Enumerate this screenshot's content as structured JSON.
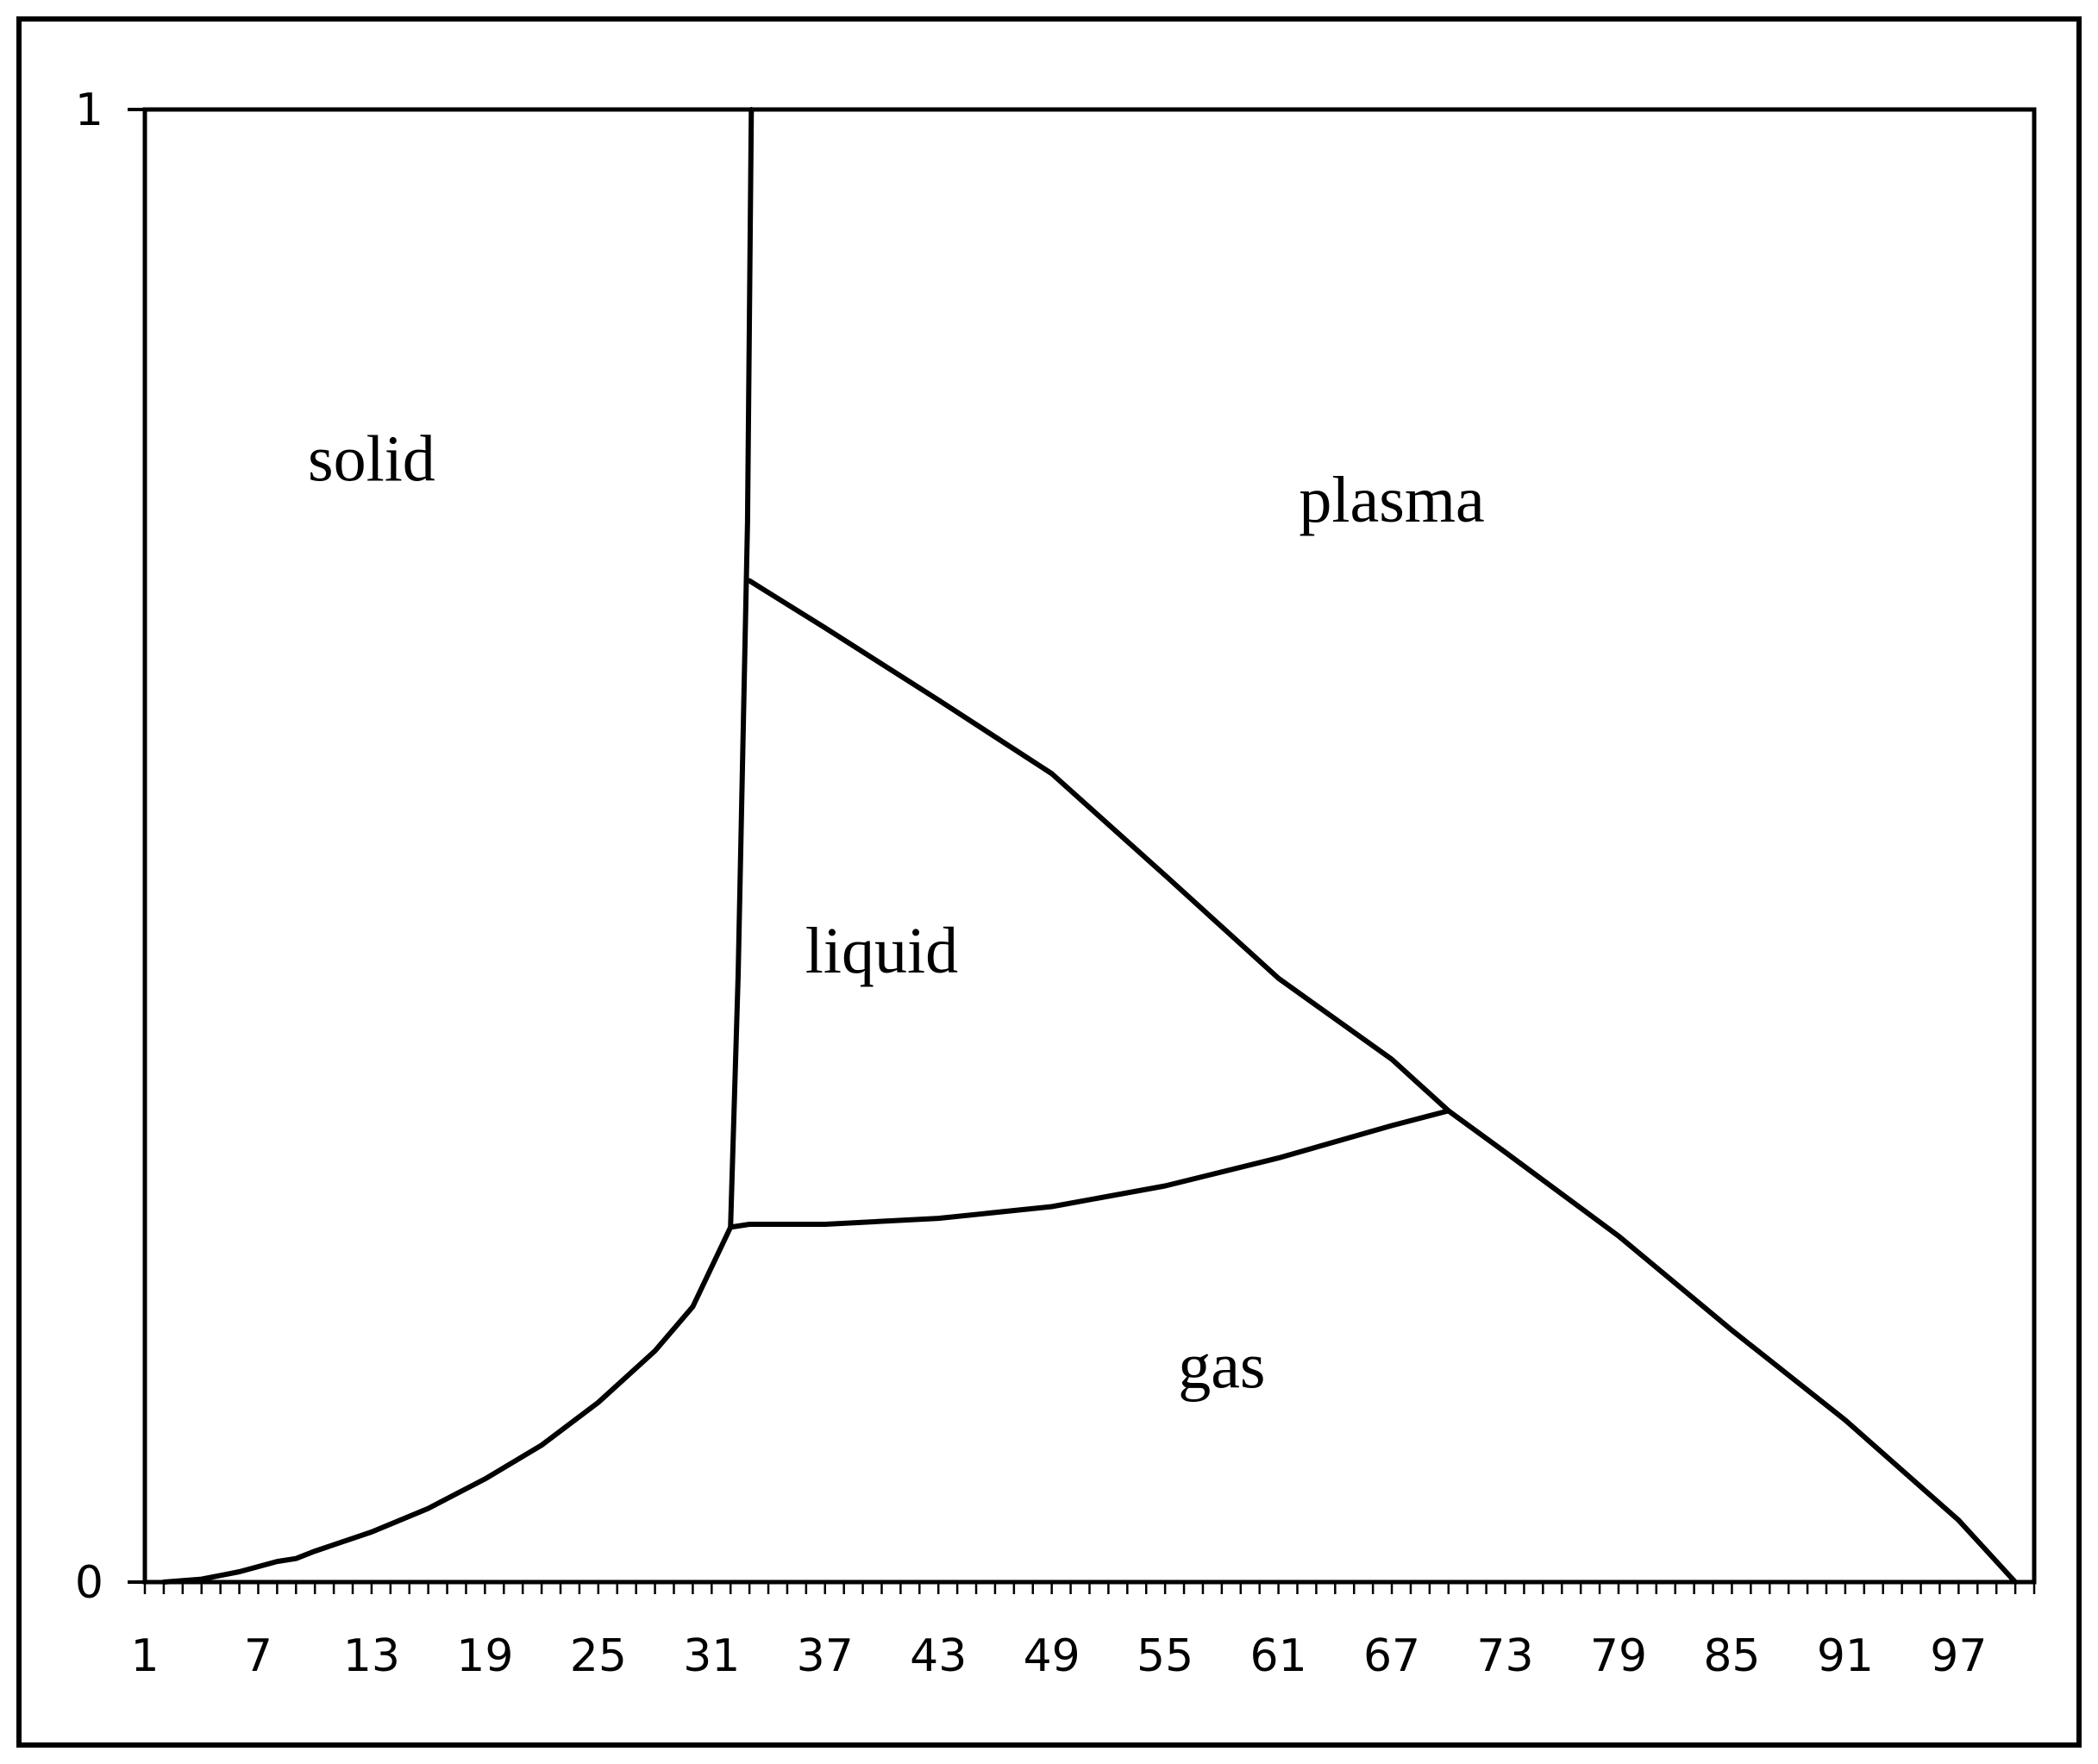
{
  "chart_data": {
    "type": "line",
    "title": "",
    "xlabel": "",
    "ylabel": "",
    "xlim": [
      1,
      101
    ],
    "ylim": [
      0,
      1
    ],
    "x_ticks": [
      "1",
      "7",
      "13",
      "19",
      "25",
      "31",
      "37",
      "43",
      "49",
      "55",
      "61",
      "67",
      "73",
      "79",
      "85",
      "91",
      "97"
    ],
    "y_ticks": [
      "0",
      "1"
    ],
    "grid": false,
    "legend": "none",
    "colors": {
      "line": "#000000",
      "background": "#ffffff"
    },
    "series": [
      {
        "values": [
          [
            2,
            0
          ],
          [
            4,
            0.002
          ],
          [
            6,
            0.007
          ],
          [
            8,
            0.014
          ],
          [
            9,
            0.016
          ],
          [
            10,
            0.021
          ],
          [
            13,
            0.034
          ],
          [
            16,
            0.05
          ],
          [
            19,
            0.07
          ],
          [
            22,
            0.093
          ],
          [
            25,
            0.122
          ],
          [
            28,
            0.157
          ],
          [
            30,
            0.187
          ],
          [
            32,
            0.241
          ]
        ]
      },
      {
        "values": [
          [
            32,
            0.241
          ],
          [
            32.4,
            0.412
          ],
          [
            32.9,
            0.72
          ],
          [
            33.1,
            1.0
          ]
        ]
      },
      {
        "values": [
          [
            32,
            0.241
          ],
          [
            33,
            0.243
          ],
          [
            37,
            0.243
          ],
          [
            43,
            0.247
          ],
          [
            49,
            0.255
          ],
          [
            55,
            0.269
          ],
          [
            61,
            0.288
          ],
          [
            67,
            0.31
          ],
          [
            70,
            0.32
          ]
        ]
      },
      {
        "values": [
          [
            33,
            0.68
          ],
          [
            37,
            0.648
          ],
          [
            43,
            0.599
          ],
          [
            49,
            0.549
          ],
          [
            55,
            0.48
          ],
          [
            61,
            0.41
          ],
          [
            67,
            0.355
          ],
          [
            70,
            0.32
          ],
          [
            73,
            0.292
          ],
          [
            79,
            0.235
          ],
          [
            85,
            0.171
          ],
          [
            91,
            0.11
          ],
          [
            97,
            0.042
          ],
          [
            100,
            0.0
          ]
        ]
      }
    ],
    "annotations": [
      {
        "text": "solid",
        "x": 13,
        "y": 0.748
      },
      {
        "text": "plasma",
        "x": 67,
        "y": 0.72
      },
      {
        "text": "liquid",
        "x": 40,
        "y": 0.414
      },
      {
        "text": "gas",
        "x": 58,
        "y": 0.132
      }
    ]
  }
}
